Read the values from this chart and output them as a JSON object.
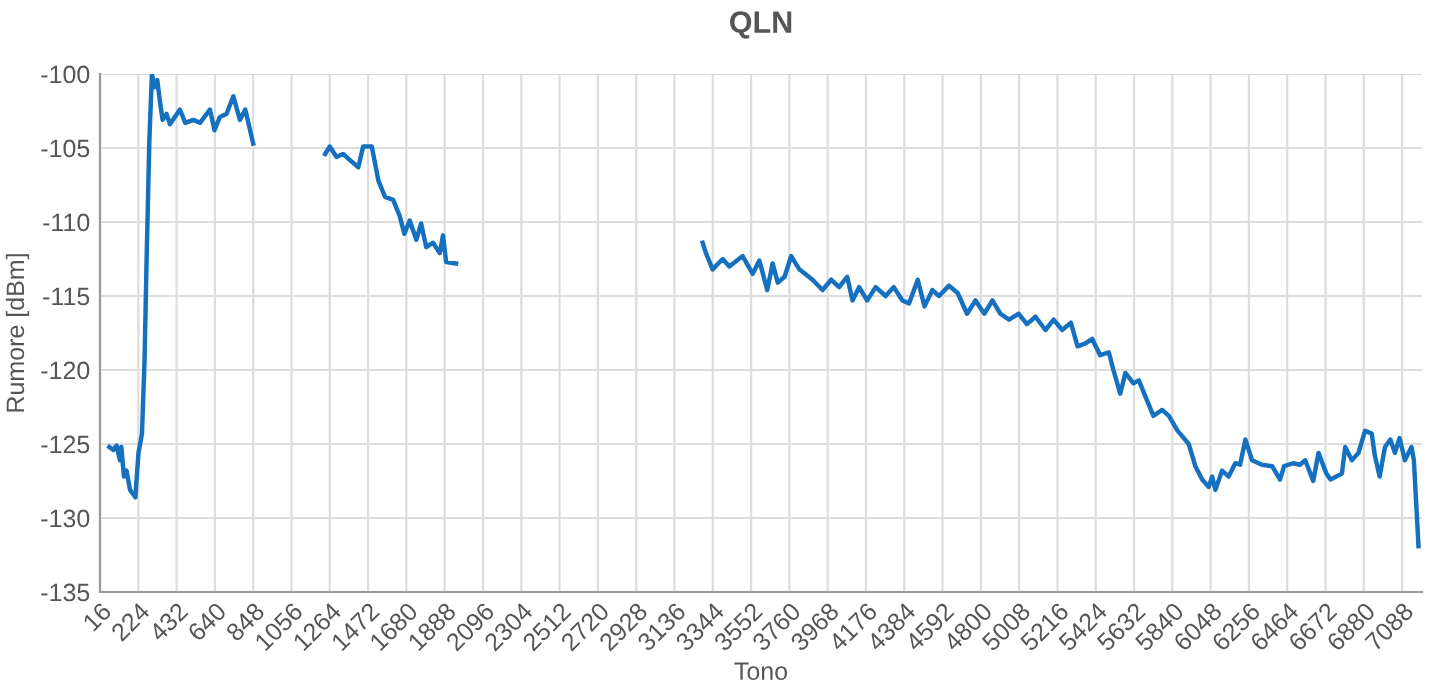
{
  "chart_data": {
    "type": "line",
    "title": "QLN",
    "xlabel": "Tono",
    "ylabel": "Rumore [dBm]",
    "xlim": [
      16,
      7196
    ],
    "ylim": [
      -135,
      -100
    ],
    "xticks": [
      16,
      224,
      432,
      640,
      848,
      1056,
      1264,
      1472,
      1680,
      1888,
      2096,
      2304,
      2512,
      2720,
      2928,
      3136,
      3344,
      3552,
      3760,
      3968,
      4176,
      4384,
      4592,
      4800,
      5008,
      5216,
      5424,
      5632,
      5840,
      6048,
      6256,
      6464,
      6672,
      6880,
      7088
    ],
    "yticks": [
      -135,
      -130,
      -125,
      -120,
      -115,
      -110,
      -105,
      -100
    ],
    "grid": true,
    "marker": "none",
    "line_style": "solid",
    "series": [
      {
        "color": "#1570c0",
        "x": [
          67,
          89,
          106,
          124,
          132,
          146,
          160,
          179,
          208,
          225,
          244,
          258,
          269,
          284,
          298,
          312,
          327,
          341,
          356,
          377,
          396,
          450,
          479,
          523,
          559,
          613,
          638,
          667,
          703,
          740,
          776,
          805,
          848,
          1040,
          1239,
          1264,
          1300,
          1336,
          1372,
          1419,
          1445,
          1492,
          1528,
          1564,
          1608,
          1644,
          1669,
          1698,
          1734,
          1760,
          1788,
          1825,
          1861,
          1879,
          1896,
          1950,
          2600,
          3289,
          3307,
          3343,
          3398,
          3434,
          3506,
          3561,
          3597,
          3640,
          3669,
          3697,
          3734,
          3770,
          3814,
          3886,
          3940,
          3987,
          4030,
          4074,
          4103,
          4139,
          4182,
          4229,
          4283,
          4327,
          4374,
          4410,
          4457,
          4494,
          4537,
          4573,
          4627,
          4674,
          4725,
          4771,
          4819,
          4863,
          4906,
          4953,
          5006,
          5050,
          5097,
          5151,
          5195,
          5242,
          5289,
          5325,
          5368,
          5405,
          5448,
          5495,
          5520,
          5557,
          5585,
          5629,
          5658,
          5694,
          5737,
          5785,
          5821,
          5868,
          5929,
          5965,
          6002,
          6038,
          6056,
          6074,
          6110,
          6146,
          6182,
          6208,
          6237,
          6273,
          6327,
          6382,
          6425,
          6447,
          6496,
          6533,
          6562,
          6605,
          6634,
          6677,
          6699,
          6761,
          6779,
          6815,
          6851,
          6887,
          6923,
          6940,
          6966,
          6995,
          7024,
          7049,
          7074,
          7103,
          7139,
          7152,
          7177
        ],
        "values": [
          -125.2,
          -125.4,
          -125.1,
          -126.1,
          -125.2,
          -127.2,
          -126.8,
          -128.1,
          -128.6,
          -125.6,
          -124.3,
          -119.3,
          -112.6,
          -104.5,
          -100.0,
          -100.9,
          -100.4,
          -101.8,
          -103.1,
          -102.7,
          -103.4,
          -102.4,
          -103.3,
          -103.1,
          -103.3,
          -102.4,
          -103.8,
          -102.9,
          -102.7,
          -101.5,
          -103.1,
          -102.4,
          -104.7,
          null,
          -105.4,
          -104.9,
          -105.6,
          -105.4,
          -105.8,
          -106.3,
          -104.9,
          -104.9,
          -107.2,
          -108.3,
          -108.5,
          -109.6,
          -110.8,
          -109.9,
          -111.2,
          -110.1,
          -111.7,
          -111.4,
          -112.1,
          -110.9,
          -112.7,
          -112.8,
          null,
          -111.4,
          -112.1,
          -113.2,
          -112.5,
          -113.0,
          -112.3,
          -113.5,
          -112.6,
          -114.6,
          -112.8,
          -114.1,
          -113.7,
          -112.3,
          -113.2,
          -113.9,
          -114.6,
          -113.9,
          -114.4,
          -113.7,
          -115.3,
          -114.4,
          -115.3,
          -114.4,
          -115.0,
          -114.4,
          -115.3,
          -115.5,
          -113.9,
          -115.7,
          -114.6,
          -115.0,
          -114.3,
          -114.8,
          -116.2,
          -115.3,
          -116.2,
          -115.3,
          -116.2,
          -116.6,
          -116.2,
          -116.9,
          -116.4,
          -117.3,
          -116.6,
          -117.3,
          -116.8,
          -118.4,
          -118.2,
          -117.9,
          -119.0,
          -118.8,
          -120.0,
          -121.6,
          -120.2,
          -120.9,
          -120.7,
          -121.8,
          -123.1,
          -122.7,
          -123.1,
          -124.1,
          -125.0,
          -126.5,
          -127.4,
          -127.9,
          -127.2,
          -128.1,
          -126.8,
          -127.2,
          -126.3,
          -126.4,
          -124.7,
          -126.1,
          -126.4,
          -126.5,
          -127.4,
          -126.5,
          -126.3,
          -126.4,
          -126.1,
          -127.5,
          -125.6,
          -127.0,
          -127.4,
          -127.0,
          -125.2,
          -126.1,
          -125.6,
          -124.1,
          -124.3,
          -125.8,
          -127.2,
          -125.2,
          -124.7,
          -125.6,
          -124.6,
          -126.1,
          -125.2,
          -126.1,
          -131.9
        ]
      }
    ]
  }
}
